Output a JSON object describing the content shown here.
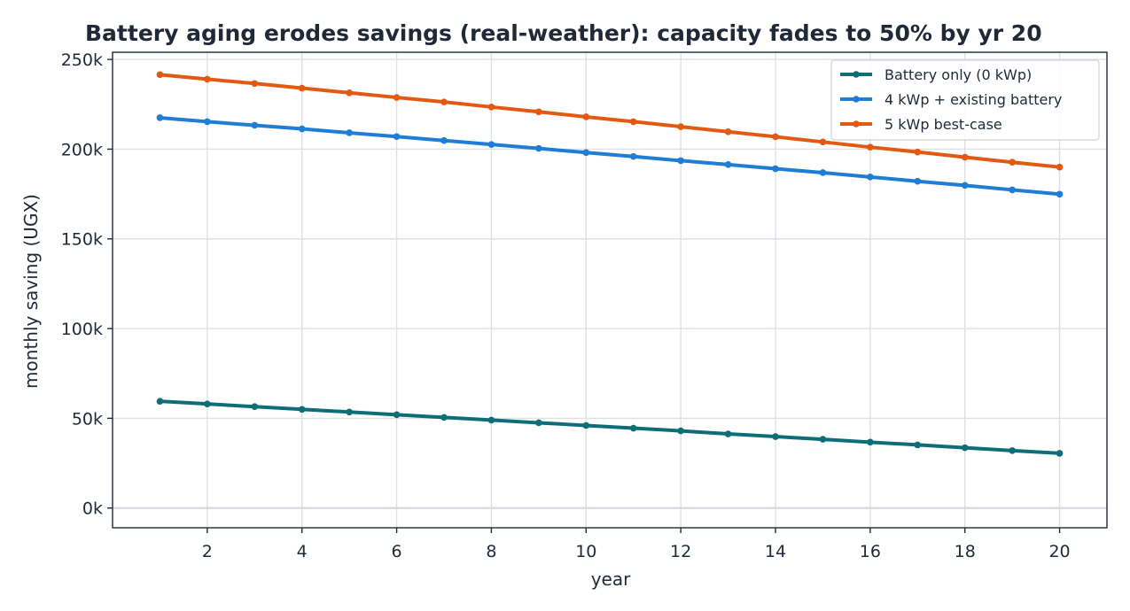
{
  "chart_data": {
    "type": "line",
    "title": "Battery aging erodes savings (real-weather): capacity fades to 50% by yr 20",
    "xlabel": "year",
    "ylabel": "monthly saving (UGX)",
    "xlim": [
      0,
      21
    ],
    "ylim": [
      -11000,
      254000
    ],
    "x_ticks": [
      2,
      4,
      6,
      8,
      10,
      12,
      14,
      16,
      18,
      20
    ],
    "y_ticks": [
      0,
      50000,
      100000,
      150000,
      200000,
      250000
    ],
    "y_tick_labels": [
      "0k",
      "50k",
      "100k",
      "150k",
      "200k",
      "250k"
    ],
    "grid": true,
    "legend_position": "top-right",
    "x": [
      1,
      2,
      3,
      4,
      5,
      6,
      7,
      8,
      9,
      10,
      11,
      12,
      13,
      14,
      15,
      16,
      17,
      18,
      19,
      20
    ],
    "series": [
      {
        "name": "Battery only (0 kWp)",
        "color": "#0e6e78",
        "values": [
          59500,
          58000,
          56500,
          55000,
          53500,
          52000,
          50500,
          49000,
          47500,
          46000,
          44500,
          43000,
          41300,
          39800,
          38300,
          36700,
          35200,
          33600,
          32000,
          30500
        ]
      },
      {
        "name": "4 kWp + existing battery",
        "color": "#1f7dd6",
        "values": [
          217500,
          215300,
          213300,
          211300,
          209100,
          207000,
          204800,
          202600,
          200400,
          198100,
          195900,
          193600,
          191400,
          189100,
          186900,
          184500,
          182100,
          179800,
          177300,
          174900
        ]
      },
      {
        "name": "5 kWp best-case",
        "color": "#e25a12",
        "values": [
          241500,
          239000,
          236600,
          234000,
          231400,
          228800,
          226300,
          223500,
          220800,
          218000,
          215300,
          212500,
          209700,
          206900,
          204000,
          201100,
          198400,
          195500,
          192700,
          190000
        ]
      }
    ]
  }
}
